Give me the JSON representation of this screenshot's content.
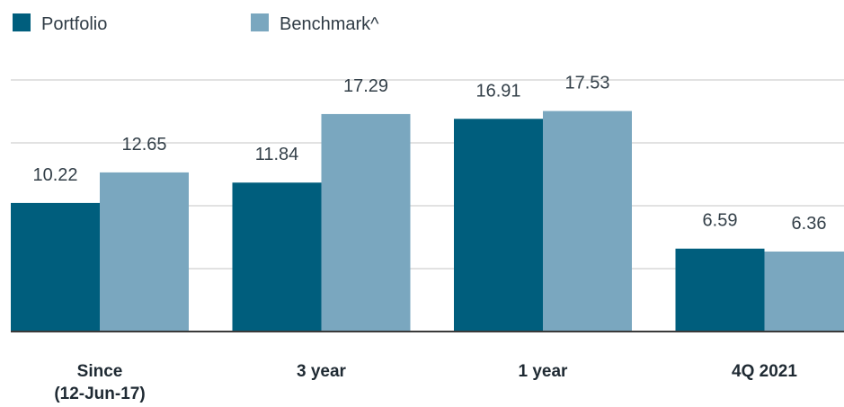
{
  "chart_data": {
    "type": "bar",
    "categories": [
      [
        "Since",
        "(12-Jun-17)"
      ],
      [
        "3 year"
      ],
      [
        "1 year"
      ],
      [
        "4Q 2021"
      ]
    ],
    "series": [
      {
        "name": "Portfolio",
        "color": "#005e7d",
        "values": [
          10.22,
          11.84,
          16.91,
          6.59
        ]
      },
      {
        "name": "Benchmark^",
        "color": "#7aa7bf",
        "values": [
          12.65,
          17.29,
          17.53,
          6.36
        ]
      }
    ],
    "title": "",
    "xlabel": "",
    "ylabel": "",
    "ylim": [
      0,
      20
    ],
    "grid": true,
    "legend": "top-left",
    "gridline_color": "#d9d9d9",
    "axis_color": "#3a3a3a"
  }
}
